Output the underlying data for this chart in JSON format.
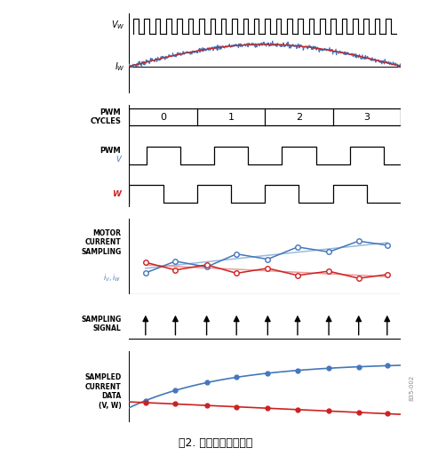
{
  "bg_color": "#ffffff",
  "title_text": "图2. 平均电流采样图解",
  "blue_color": "#4477bb",
  "red_color": "#cc2222",
  "light_blue": "#99bbdd",
  "light_red": "#ee9999",
  "black": "#000000",
  "cycle_labels": [
    "0",
    "1",
    "2",
    "3"
  ],
  "watermark": "835-002",
  "n_pulses": 24,
  "pulse_duty": 0.45
}
